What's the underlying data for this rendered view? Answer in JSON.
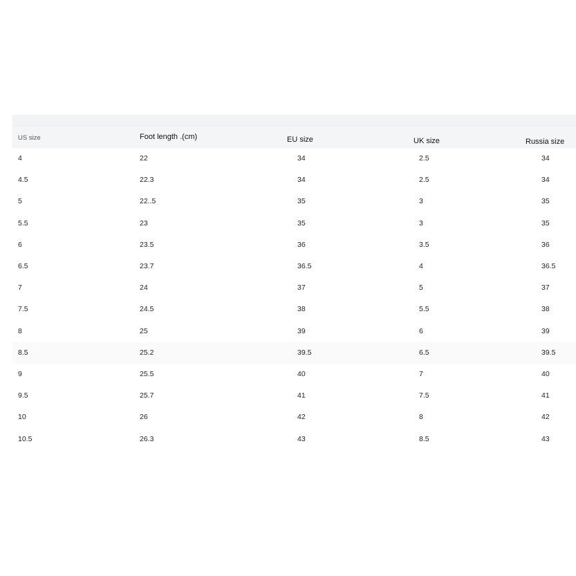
{
  "table": {
    "headers": [
      "US size",
      "Foot length .(cm)",
      "EU size",
      "UK size",
      "Russia size"
    ],
    "rows": [
      [
        "4",
        "22",
        "34",
        "2.5",
        "34"
      ],
      [
        "4.5",
        "22.3",
        "34",
        "2.5",
        "34"
      ],
      [
        "5",
        "22..5",
        "35",
        "3",
        "35"
      ],
      [
        "5.5",
        "23",
        "35",
        "3",
        "35"
      ],
      [
        "6",
        "23.5",
        "36",
        "3.5",
        "36"
      ],
      [
        "6.5",
        "23.7",
        "36.5",
        "4",
        "36.5"
      ],
      [
        "7",
        "24",
        "37",
        "5",
        "37"
      ],
      [
        "7.5",
        "24.5",
        "38",
        "5.5",
        "38"
      ],
      [
        "8",
        "25",
        "39",
        "6",
        "39"
      ],
      [
        "8.5",
        "25.2",
        "39.5",
        "6.5",
        "39.5"
      ],
      [
        "9",
        "25.5",
        "40",
        "7",
        "40"
      ],
      [
        "9.5",
        "25.7",
        "41",
        "7.5",
        "41"
      ],
      [
        "10",
        "26",
        "42",
        "8",
        "42"
      ],
      [
        "10.5",
        "26.3",
        "43",
        "8.5",
        "43"
      ]
    ]
  }
}
